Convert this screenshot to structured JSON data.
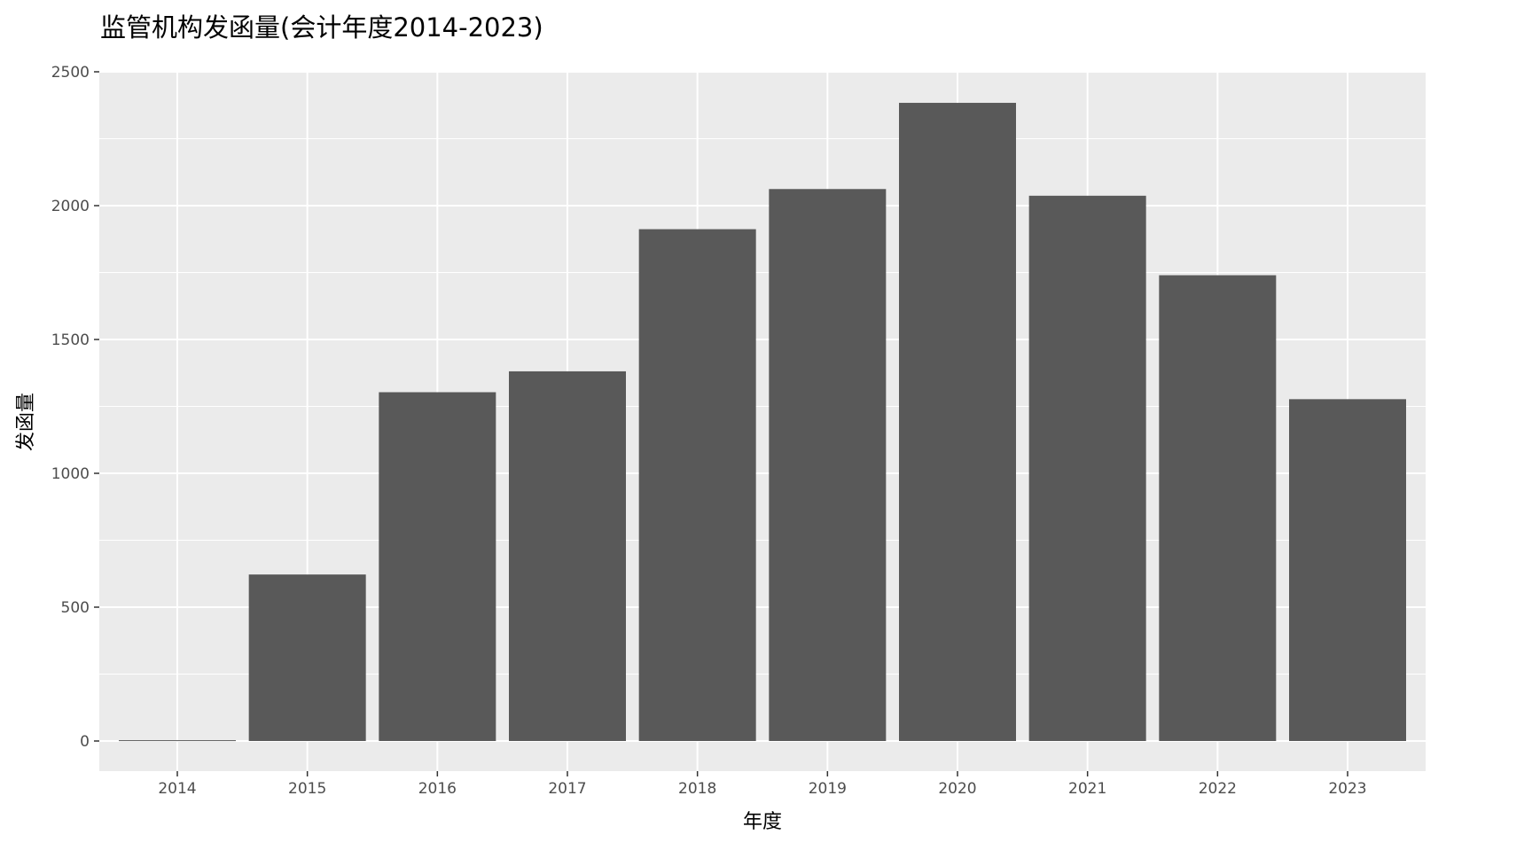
{
  "chart_data": {
    "type": "bar",
    "title": "监管机构发函量(会计年度2014-2023)",
    "xlabel": "年度",
    "ylabel": "发函量",
    "categories": [
      "2014",
      "2015",
      "2016",
      "2017",
      "2018",
      "2019",
      "2020",
      "2021",
      "2022",
      "2023"
    ],
    "values": [
      3,
      622,
      1303,
      1381,
      1912,
      2062,
      2384,
      2037,
      1740,
      1277
    ],
    "ylim": [
      0,
      2500
    ],
    "yticks": [
      0,
      500,
      1000,
      1500,
      2000,
      2500
    ],
    "ytick_labels": [
      "0",
      "500",
      "1000",
      "1500",
      "2000",
      "2500"
    ],
    "grid": true,
    "legend": "none",
    "colors": {
      "bar": "#595959",
      "panel": "#ebebeb",
      "grid": "#ffffff",
      "tick_text": "#4d4d4d",
      "tick_mark": "#333333"
    }
  }
}
